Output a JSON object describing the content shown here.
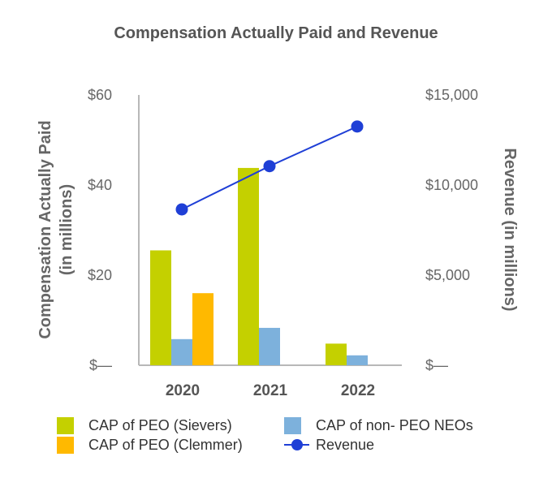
{
  "chart_data": {
    "type": "bar",
    "title": "Compensation Actually Paid and Revenue",
    "categories": [
      "2020",
      "2021",
      "2022"
    ],
    "series": [
      {
        "name": "CAP of PEO (Sievers)",
        "color": "#c4d000",
        "values": [
          25.5,
          43.8,
          4.8
        ],
        "axis": "left"
      },
      {
        "name": "CAP of non- PEO NEOs",
        "color": "#7db1dc",
        "values": [
          5.8,
          8.3,
          2.2
        ],
        "axis": "left"
      },
      {
        "name": "CAP of PEO (Clemmer)",
        "color": "#ffb900",
        "values": [
          16.0,
          null,
          null
        ],
        "axis": "left"
      }
    ],
    "line_series": {
      "name": "Revenue",
      "color": "#1f3fd6",
      "values": [
        8650,
        11050,
        13250
      ],
      "axis": "right"
    },
    "left_axis": {
      "label_line1": "Compensation Actually Paid",
      "label_line2": "(in millions)",
      "ylim": [
        0,
        60
      ],
      "ticks": [
        {
          "value": 0,
          "label": "$—"
        },
        {
          "value": 20,
          "label": "$20"
        },
        {
          "value": 40,
          "label": "$40"
        },
        {
          "value": 60,
          "label": "$60"
        }
      ]
    },
    "right_axis": {
      "label": "Revenue (in millions)",
      "ylim": [
        0,
        15000
      ],
      "ticks": [
        {
          "value": 0,
          "label": "$—"
        },
        {
          "value": 5000,
          "label": "$5,000"
        },
        {
          "value": 10000,
          "label": "$10,000"
        },
        {
          "value": 15000,
          "label": "$15,000"
        }
      ]
    },
    "legend": {
      "position": "bottom",
      "order": [
        "CAP of PEO (Sievers)",
        "CAP of non- PEO NEOs",
        "CAP of PEO (Clemmer)",
        "Revenue"
      ]
    },
    "grid": false
  }
}
